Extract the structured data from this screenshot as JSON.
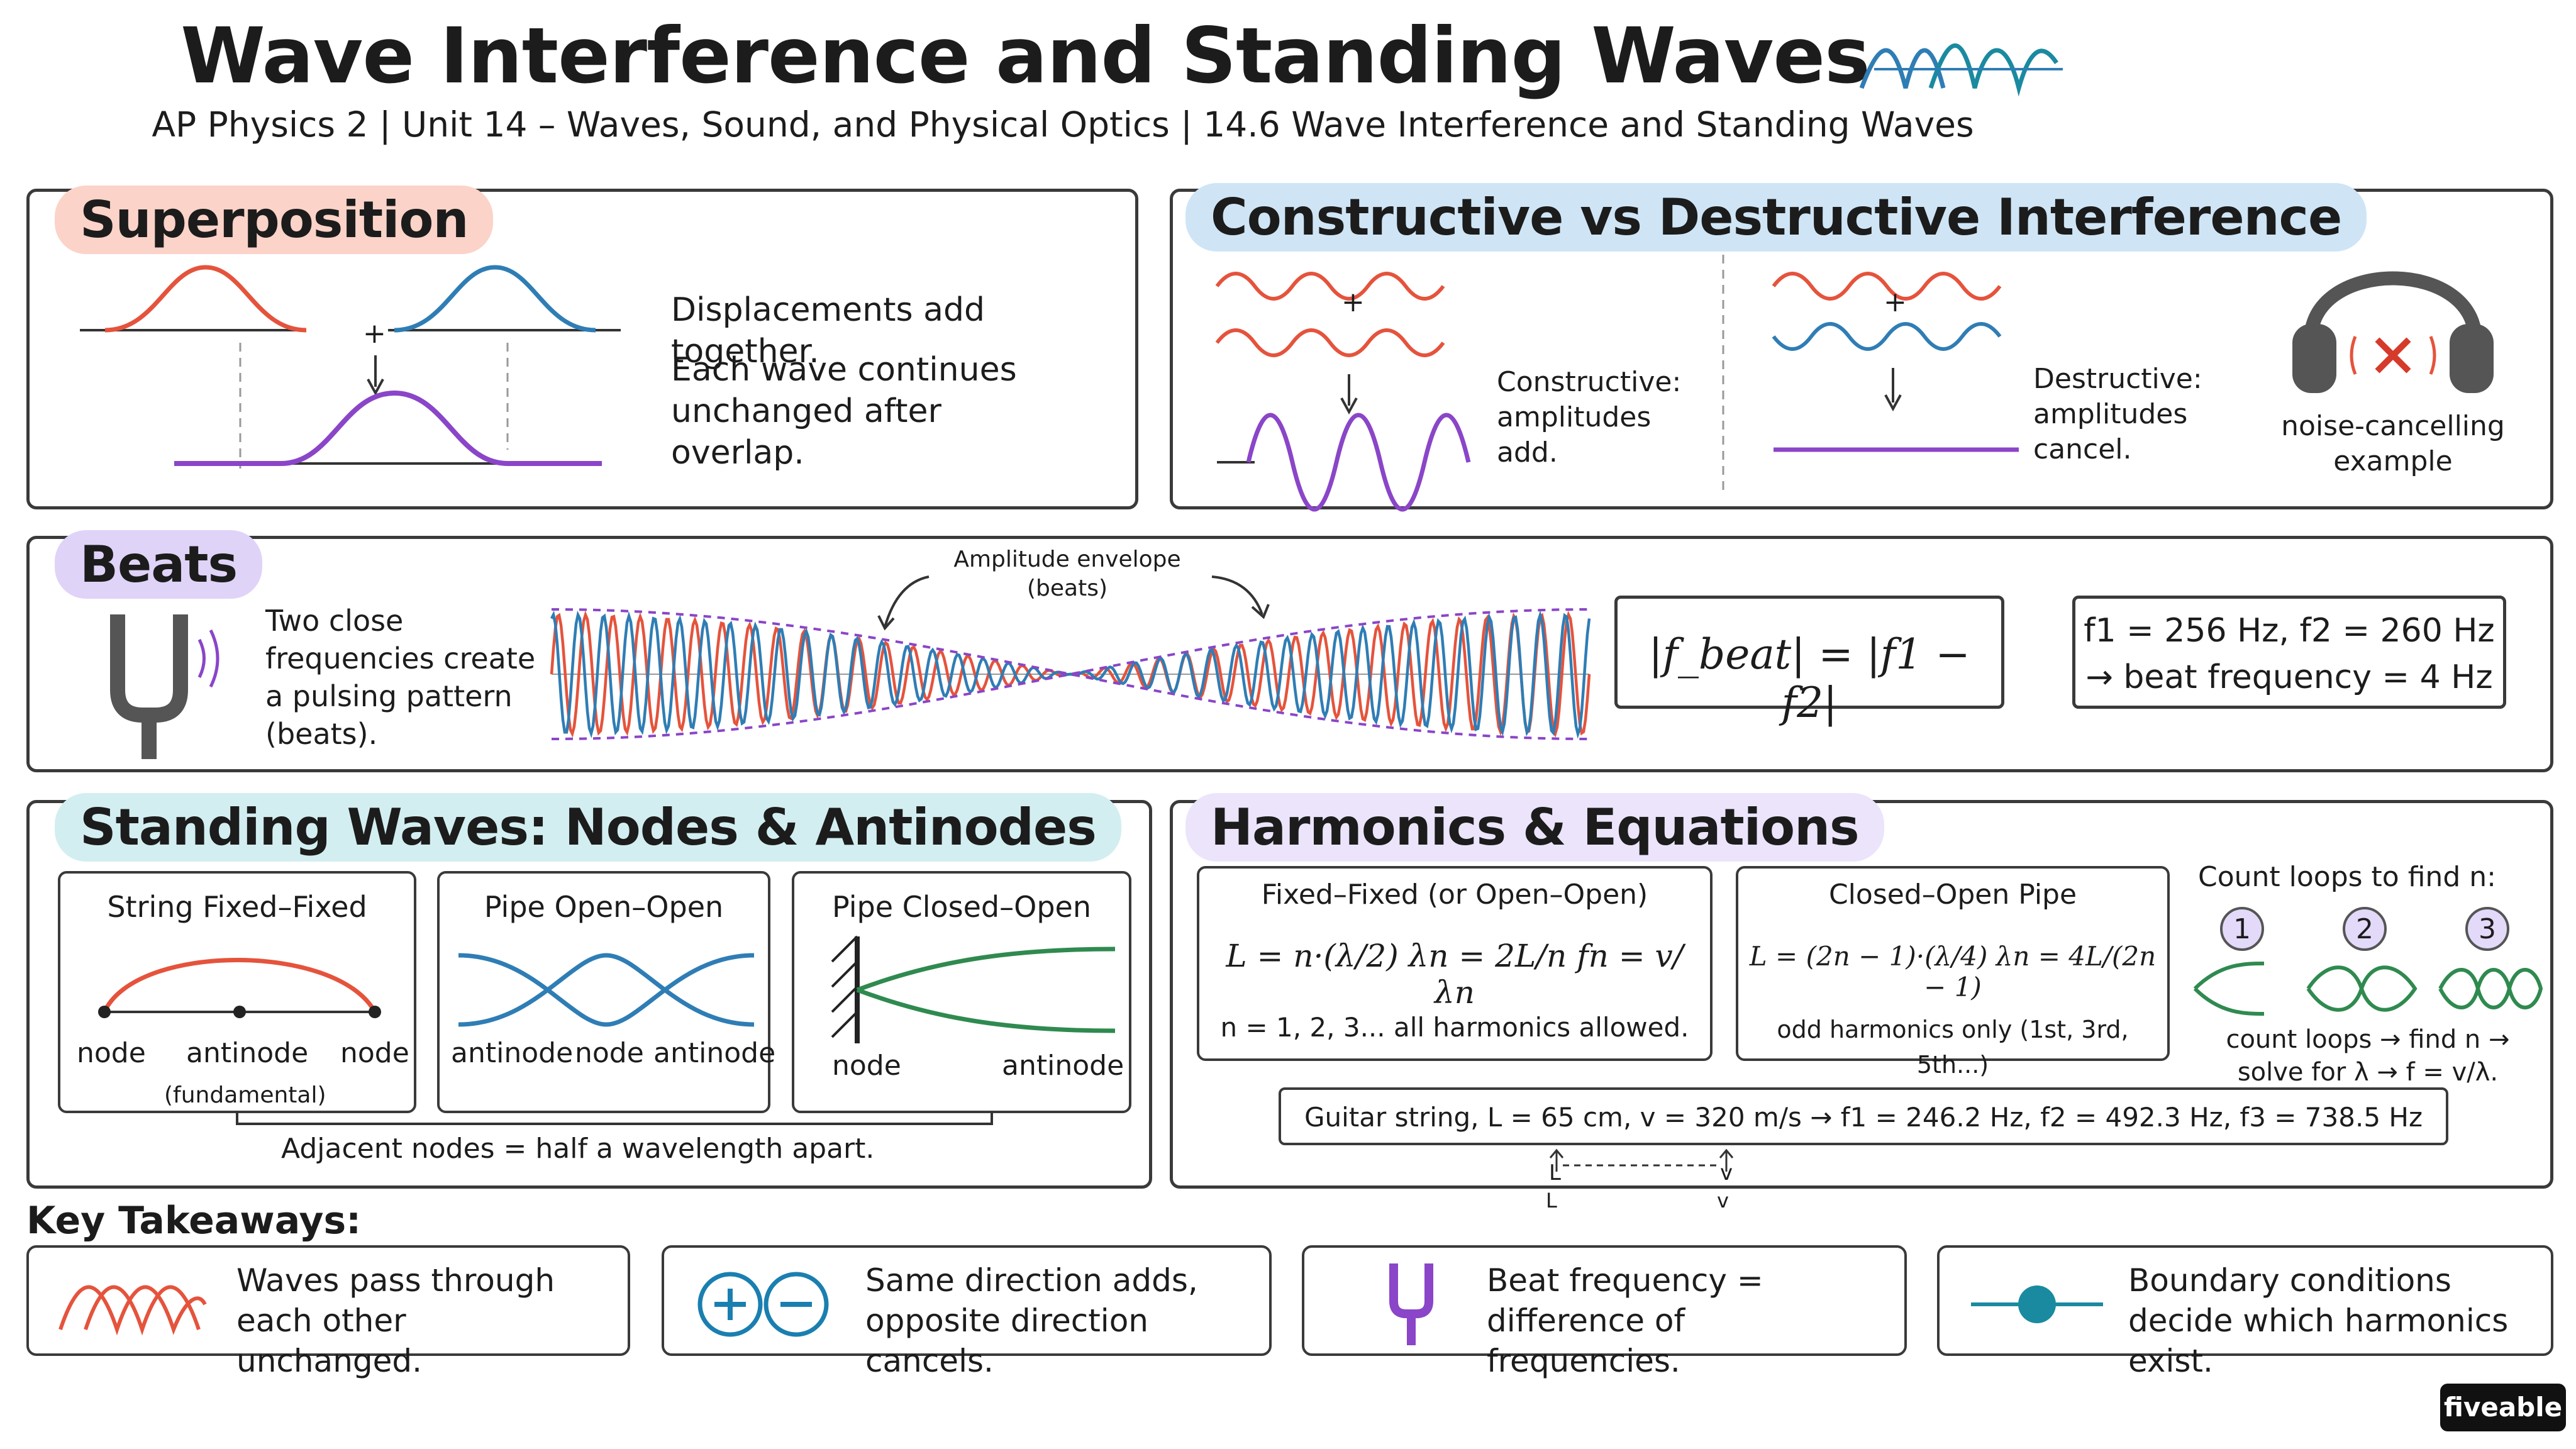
{
  "header": {
    "title": "Wave Interference and Standing Waves",
    "subtitle": "AP Physics 2 | Unit 14 – Waves, Sound, and Physical Optics | 14.6 Wave Interference and Standing Waves"
  },
  "superposition": {
    "title": "Superposition",
    "line1": "Displacements add together.",
    "line2": "Each wave continues unchanged after overlap.",
    "plus": "+"
  },
  "interference": {
    "title": "Constructive vs Destructive Interference",
    "constructive": "Constructive: amplitudes add.",
    "destructive": "Destructive: amplitudes cancel.",
    "headphones": "noise-cancelling example",
    "plus": "+"
  },
  "beats": {
    "title": "Beats",
    "desc": "Two close frequencies create a pulsing pattern (beats).",
    "envelope": "Amplitude envelope (beats)",
    "formula": "|f_beat| = |f1 − f2|",
    "example_line1": "f1 = 256 Hz, f2 = 260 Hz",
    "example_line2": "→ beat frequency = 4 Hz"
  },
  "standing": {
    "title": "Standing Waves: Nodes & Antinodes",
    "string": {
      "title": "String Fixed–Fixed",
      "labels": [
        "node",
        "antinode",
        "node"
      ],
      "note": "(fundamental)"
    },
    "open": {
      "title": "Pipe Open–Open",
      "labels": [
        "antinode",
        "node",
        "antinode"
      ]
    },
    "closed": {
      "title": "Pipe Closed–Open",
      "labels": [
        "node",
        "antinode"
      ]
    },
    "caption": "Adjacent nodes = half a wavelength apart."
  },
  "harmonics": {
    "title": "Harmonics & Equations",
    "fixed_title": "Fixed–Fixed (or Open–Open)",
    "fixed_eq": "L = n·(λ/2)    λn = 2L/n    fn = v/λn",
    "fixed_note": "n = 1, 2, 3... all harmonics allowed.",
    "closed_title": "Closed–Open Pipe",
    "closed_eq": "L = (2n − 1)·(λ/4)    λn = 4L/(2n − 1)",
    "closed_note": "odd harmonics only (1st, 3rd, 5th...)",
    "count_title": "Count loops to find n:",
    "count_numbers": [
      "1",
      "2",
      "3"
    ],
    "count_note": "count loops → find n → solve for λ → f = v/λ.",
    "guitar": "Guitar string, L = 65 cm, v = 320 m/s → f1 = 246.2 Hz, f2 = 492.3 Hz, f3 = 738.5 Hz",
    "marks": [
      "L",
      "L",
      "v",
      "v"
    ]
  },
  "takeaways": {
    "title": "Key Takeaways:",
    "items": [
      {
        "text": "Waves pass through each other unchanged.",
        "icon": "waves-icon"
      },
      {
        "text": "Same direction adds, opposite direction cancels.",
        "icon": "plus-minus-icon"
      },
      {
        "text": "Beat frequency = difference of frequencies.",
        "icon": "tuning-fork-icon"
      },
      {
        "text": "Boundary conditions decide which harmonics exist.",
        "icon": "boundary-node-icon"
      }
    ]
  },
  "brand": "fiveable",
  "colors": {
    "red": "#e5533c",
    "blue": "#2f7db5",
    "purple": "#8a45c8",
    "green": "#2f8a4f",
    "teal": "#1a8aa0",
    "dark": "#3a3a3a"
  }
}
